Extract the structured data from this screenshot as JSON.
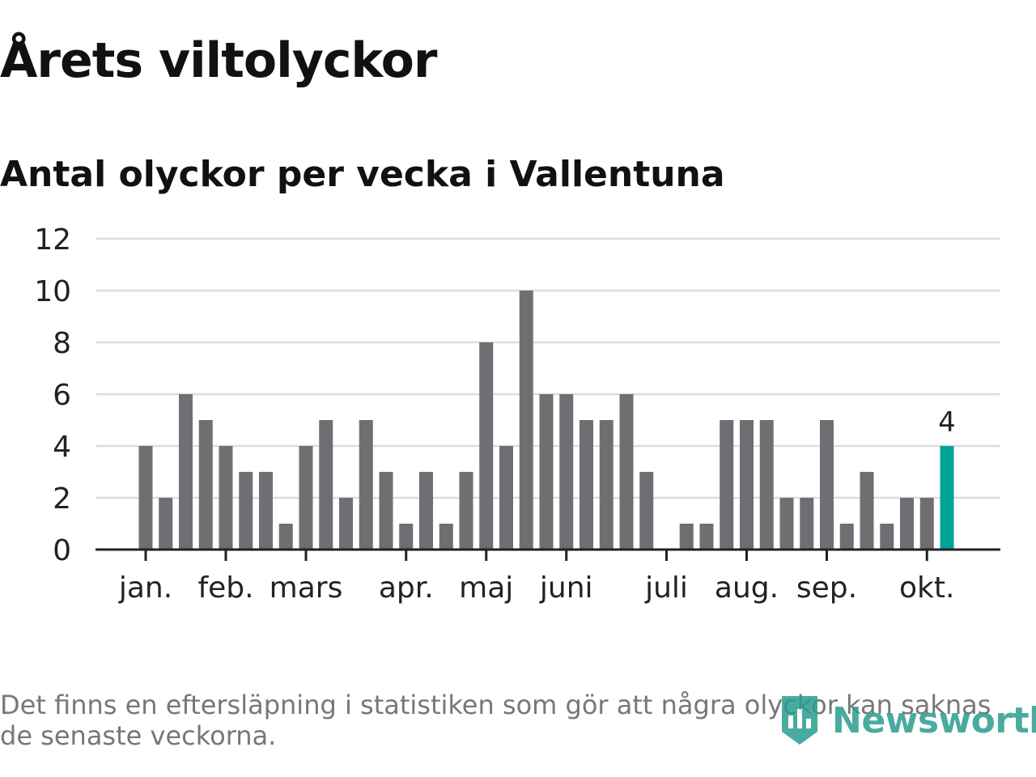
{
  "title": "Årets viltolyckor",
  "subtitle": "Antal olyckor per vecka i Vallentuna",
  "footnote": "Det finns en eftersläpning i statistiken som gör att några olyckor kan saknas de senaste veckorna.",
  "brand": "Newsworthy",
  "colors": {
    "bar": "#6f6e73",
    "highlight": "#00a39a",
    "grid": "#dddddd",
    "axis": "#222222",
    "text": "#222222"
  },
  "chart_data": {
    "type": "bar",
    "values": [
      4,
      2,
      6,
      5,
      4,
      3,
      3,
      1,
      4,
      5,
      2,
      5,
      3,
      1,
      3,
      1,
      3,
      8,
      4,
      10,
      6,
      6,
      5,
      5,
      6,
      3,
      0,
      1,
      1,
      5,
      5,
      5,
      2,
      2,
      5,
      1,
      3,
      1,
      2,
      2,
      4
    ],
    "highlight_last": true,
    "last_value_label": "4",
    "ylim": [
      0,
      12
    ],
    "yticks": [
      0,
      2,
      4,
      6,
      8,
      10,
      12
    ],
    "month_labels": [
      {
        "label": "jan.",
        "week": 1
      },
      {
        "label": "feb.",
        "week": 5
      },
      {
        "label": "mars",
        "week": 9
      },
      {
        "label": "apr.",
        "week": 14
      },
      {
        "label": "maj",
        "week": 18
      },
      {
        "label": "juni",
        "week": 22
      },
      {
        "label": "juli",
        "week": 27
      },
      {
        "label": "aug.",
        "week": 31
      },
      {
        "label": "sep.",
        "week": 35
      },
      {
        "label": "okt.",
        "week": 40
      }
    ],
    "grid": true,
    "xlabel": "",
    "ylabel": ""
  }
}
